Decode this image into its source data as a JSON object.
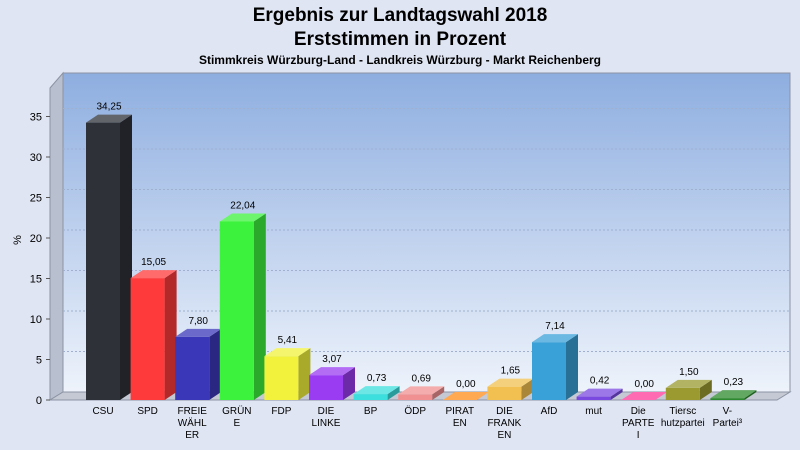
{
  "chart_data": {
    "type": "bar",
    "title": "Ergebnis zur Landtagswahl 2018",
    "title2": "Erststimmen in Prozent",
    "subtitle": "Stimmkreis Würzburg-Land - Landkreis Würzburg - Markt Reichenberg",
    "ylabel": "%",
    "ylim": [
      0,
      38
    ],
    "yticks": [
      "0",
      "5",
      "10",
      "15",
      "20",
      "25",
      "30",
      "35"
    ],
    "grid": true,
    "categories": [
      [
        "CSU"
      ],
      [
        "SPD"
      ],
      [
        "FREIE",
        "WÄHL",
        "ER"
      ],
      [
        "GRÜN",
        "E"
      ],
      [
        "FDP"
      ],
      [
        "DIE",
        "LINKE"
      ],
      [
        "BP"
      ],
      [
        "ÖDP"
      ],
      [
        "PIRAT",
        "EN"
      ],
      [
        "DIE",
        "FRANK",
        "EN"
      ],
      [
        "AfD"
      ],
      [
        "mut"
      ],
      [
        "Die",
        "PARTE",
        "I"
      ],
      [
        "Tiersc",
        "hutzpartei"
      ],
      [
        "V-",
        "Partei³"
      ]
    ],
    "values": [
      34.25,
      15.05,
      7.8,
      22.04,
      5.41,
      3.07,
      0.73,
      0.69,
      0.0,
      1.65,
      7.14,
      0.42,
      0.0,
      1.5,
      0.23
    ],
    "value_labels": [
      "34,25",
      "15,05",
      "7,80",
      "22,04",
      "5,41",
      "3,07",
      "0,73",
      "0,69",
      "0,00",
      "1,65",
      "7,14",
      "0,42",
      "0,00",
      "1,50",
      "0,23"
    ],
    "colors": [
      "#2e3138",
      "#ff3a3a",
      "#3a38b8",
      "#3cf23c",
      "#f2f23c",
      "#9a3cf2",
      "#3cdede",
      "#f09090",
      "#ff8c1a",
      "#f2c050",
      "#3aa0d8",
      "#7a4ae0",
      "#ff3a9a",
      "#9a9a30",
      "#2e8a2e"
    ]
  }
}
